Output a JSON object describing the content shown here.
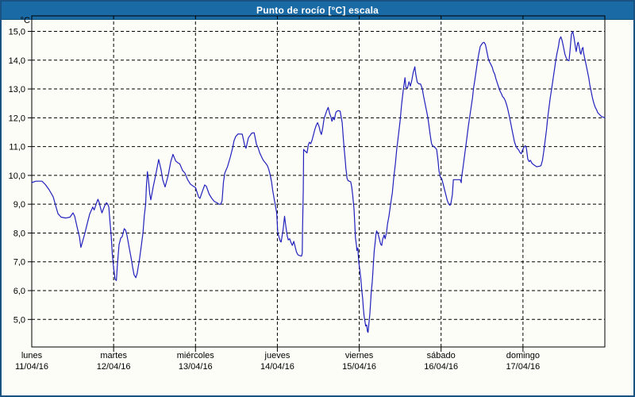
{
  "window": {
    "title": "Punto de rocío [°C] escala",
    "titlebar_color": "#1a6aa5",
    "border_color": "#1a5382",
    "background_color": "#fdfdf8"
  },
  "chart_data": {
    "type": "line",
    "title": "Punto de rocío [°C] escala",
    "series_name": "Punto de rocío",
    "unit_label": "°C",
    "line_color": "#2121bd",
    "grid_color": "#000000",
    "grid_style": "dashed",
    "xlabel": "",
    "ylabel": "°C",
    "ylim": [
      4.0,
      15.55
    ],
    "yticks": [
      {
        "value": 5,
        "label": "5,0"
      },
      {
        "value": 6,
        "label": "6,0"
      },
      {
        "value": 7,
        "label": "7,0"
      },
      {
        "value": 8,
        "label": "8,0"
      },
      {
        "value": 9,
        "label": "9,0"
      },
      {
        "value": 10,
        "label": "10,0"
      },
      {
        "value": 11,
        "label": "11,0"
      },
      {
        "value": 12,
        "label": "12,0"
      },
      {
        "value": 13,
        "label": "13,0"
      },
      {
        "value": 14,
        "label": "14,0"
      },
      {
        "value": 15,
        "label": "15,0"
      }
    ],
    "x_days": [
      {
        "name": "lunes",
        "date": "11/04/16"
      },
      {
        "name": "martes",
        "date": "12/04/16"
      },
      {
        "name": "miércoles",
        "date": "13/04/16"
      },
      {
        "name": "jueves",
        "date": "14/04/16"
      },
      {
        "name": "viernes",
        "date": "15/04/16"
      },
      {
        "name": "sábado",
        "date": "16/04/16"
      },
      {
        "name": "domingo",
        "date": "17/04/16"
      }
    ],
    "x_unit": "hours_from_monday_00",
    "xlim_hours": [
      0,
      168
    ],
    "points": [
      [
        0,
        9.75
      ],
      [
        1.2,
        9.8
      ],
      [
        3,
        9.8
      ],
      [
        4,
        9.68
      ],
      [
        5.1,
        9.5
      ],
      [
        6.3,
        9.25
      ],
      [
        7,
        8.95
      ],
      [
        7.7,
        8.67
      ],
      [
        8.6,
        8.55
      ],
      [
        10,
        8.52
      ],
      [
        11.2,
        8.55
      ],
      [
        12.1,
        8.7
      ],
      [
        12.6,
        8.58
      ],
      [
        13.3,
        8.2
      ],
      [
        14,
        7.85
      ],
      [
        14.4,
        7.5
      ],
      [
        14.9,
        7.7
      ],
      [
        15.6,
        8.0
      ],
      [
        16.3,
        8.35
      ],
      [
        17,
        8.67
      ],
      [
        17.9,
        8.9
      ],
      [
        18.3,
        8.8
      ],
      [
        18.6,
        8.9
      ],
      [
        19.1,
        9.08
      ],
      [
        19.4,
        9.17
      ],
      [
        19.8,
        9.05
      ],
      [
        20.2,
        8.85
      ],
      [
        20.6,
        8.7
      ],
      [
        20.9,
        8.8
      ],
      [
        21.4,
        8.95
      ],
      [
        21.9,
        9.05
      ],
      [
        22.3,
        9.0
      ],
      [
        22.6,
        8.9
      ],
      [
        22.9,
        8.45
      ],
      [
        23.3,
        7.9
      ],
      [
        23.6,
        7.3
      ],
      [
        24,
        6.8
      ],
      [
        24.4,
        6.4
      ],
      [
        24.8,
        6.35
      ],
      [
        25.1,
        6.9
      ],
      [
        25.6,
        7.6
      ],
      [
        26.1,
        7.83
      ],
      [
        26.5,
        7.87
      ],
      [
        27.1,
        8.15
      ],
      [
        27.5,
        8.1
      ],
      [
        27.9,
        7.93
      ],
      [
        28.6,
        7.47
      ],
      [
        29.1,
        7.15
      ],
      [
        29.6,
        6.8
      ],
      [
        30,
        6.55
      ],
      [
        30.5,
        6.45
      ],
      [
        30.9,
        6.6
      ],
      [
        31.6,
        7.1
      ],
      [
        32.1,
        7.55
      ],
      [
        32.6,
        8.0
      ],
      [
        33,
        8.6
      ],
      [
        33.4,
        9.0
      ],
      [
        33.6,
        9.6
      ],
      [
        33.9,
        10.13
      ],
      [
        34.2,
        9.85
      ],
      [
        34.6,
        9.35
      ],
      [
        34.9,
        9.15
      ],
      [
        35.6,
        9.6
      ],
      [
        36.4,
        10.05
      ],
      [
        37.2,
        10.55
      ],
      [
        37.9,
        10.2
      ],
      [
        38.4,
        9.85
      ],
      [
        39.1,
        9.6
      ],
      [
        40,
        10.0
      ],
      [
        40.7,
        10.45
      ],
      [
        41.4,
        10.73
      ],
      [
        42.2,
        10.5
      ],
      [
        42.7,
        10.45
      ],
      [
        43.4,
        10.4
      ],
      [
        44.2,
        10.17
      ],
      [
        44.9,
        10.08
      ],
      [
        45.7,
        9.85
      ],
      [
        46.5,
        9.7
      ],
      [
        47.4,
        9.62
      ],
      [
        48,
        9.58
      ],
      [
        48.9,
        9.25
      ],
      [
        49.3,
        9.2
      ],
      [
        50,
        9.44
      ],
      [
        50.7,
        9.67
      ],
      [
        51.2,
        9.62
      ],
      [
        52,
        9.35
      ],
      [
        52.8,
        9.2
      ],
      [
        53.5,
        9.1
      ],
      [
        54.3,
        9.05
      ],
      [
        54.9,
        9.0
      ],
      [
        55.4,
        9.0
      ],
      [
        55.8,
        9.12
      ],
      [
        56.2,
        9.76
      ],
      [
        56.6,
        10.08
      ],
      [
        57.4,
        10.31
      ],
      [
        58.2,
        10.63
      ],
      [
        58.9,
        10.96
      ],
      [
        59.3,
        11.2
      ],
      [
        59.8,
        11.35
      ],
      [
        60.5,
        11.44
      ],
      [
        61.7,
        11.43
      ],
      [
        62.4,
        11.05
      ],
      [
        62.8,
        10.94
      ],
      [
        63.5,
        11.3
      ],
      [
        64.5,
        11.47
      ],
      [
        65.2,
        11.48
      ],
      [
        65.9,
        11.07
      ],
      [
        66.3,
        10.98
      ],
      [
        66.8,
        10.79
      ],
      [
        67.5,
        10.61
      ],
      [
        67.9,
        10.52
      ],
      [
        68.6,
        10.42
      ],
      [
        69.1,
        10.33
      ],
      [
        69.5,
        10.2
      ],
      [
        69.8,
        10.06
      ],
      [
        70.3,
        9.78
      ],
      [
        70.6,
        9.51
      ],
      [
        71,
        9.23
      ],
      [
        71.4,
        8.96
      ],
      [
        71.8,
        8.7
      ],
      [
        72.1,
        8.03
      ],
      [
        72.5,
        7.85
      ],
      [
        72.9,
        7.71
      ],
      [
        73.1,
        7.69
      ],
      [
        73.7,
        8.12
      ],
      [
        74.1,
        8.58
      ],
      [
        74.5,
        8.21
      ],
      [
        74.9,
        7.9
      ],
      [
        75.2,
        7.76
      ],
      [
        75.6,
        7.8
      ],
      [
        76,
        7.67
      ],
      [
        76.4,
        7.57
      ],
      [
        76.8,
        7.71
      ],
      [
        77.2,
        7.53
      ],
      [
        77.6,
        7.34
      ],
      [
        78,
        7.25
      ],
      [
        78.4,
        7.22
      ],
      [
        79.1,
        7.2
      ],
      [
        79.3,
        7.3
      ],
      [
        79.4,
        8.2
      ],
      [
        79.6,
        9.5
      ],
      [
        79.7,
        10.9
      ],
      [
        80.1,
        10.85
      ],
      [
        80.7,
        10.78
      ],
      [
        81.1,
        11.06
      ],
      [
        81.4,
        11.15
      ],
      [
        81.8,
        11.1
      ],
      [
        82.2,
        11.24
      ],
      [
        82.6,
        11.42
      ],
      [
        83,
        11.6
      ],
      [
        83.4,
        11.74
      ],
      [
        83.8,
        11.83
      ],
      [
        84.2,
        11.7
      ],
      [
        84.6,
        11.51
      ],
      [
        84.9,
        11.42
      ],
      [
        85.3,
        11.65
      ],
      [
        85.7,
        11.97
      ],
      [
        86.1,
        12.11
      ],
      [
        86.5,
        12.25
      ],
      [
        86.9,
        12.36
      ],
      [
        87.3,
        12.16
      ],
      [
        87.7,
        12.02
      ],
      [
        88,
        11.88
      ],
      [
        88.4,
        12.02
      ],
      [
        88.7,
        11.93
      ],
      [
        89,
        12.11
      ],
      [
        89.2,
        12.2
      ],
      [
        89.8,
        12.25
      ],
      [
        90.4,
        12.23
      ],
      [
        90.8,
        11.97
      ],
      [
        91,
        11.83
      ],
      [
        91.3,
        11.33
      ],
      [
        91.5,
        11.06
      ],
      [
        91.7,
        10.78
      ],
      [
        91.9,
        10.51
      ],
      [
        92.1,
        10.23
      ],
      [
        92.3,
        10.05
      ],
      [
        92.4,
        9.91
      ],
      [
        92.7,
        9.82
      ],
      [
        93.1,
        9.8
      ],
      [
        93.5,
        9.78
      ],
      [
        93.8,
        9.6
      ],
      [
        94.1,
        9.3
      ],
      [
        94.5,
        8.8
      ],
      [
        94.9,
        7.84
      ],
      [
        95.2,
        7.57
      ],
      [
        95.3,
        7.39
      ],
      [
        95.6,
        7.48
      ],
      [
        95.7,
        7.25
      ],
      [
        95.9,
        6.97
      ],
      [
        96.2,
        6.7
      ],
      [
        96.5,
        6.38
      ],
      [
        96.7,
        6.06
      ],
      [
        97,
        5.73
      ],
      [
        97.2,
        5.41
      ],
      [
        97.4,
        5.14
      ],
      [
        97.7,
        4.91
      ],
      [
        97.9,
        4.77
      ],
      [
        98.2,
        4.81
      ],
      [
        98.4,
        4.59
      ],
      [
        98.6,
        4.55
      ],
      [
        98.8,
        4.81
      ],
      [
        99.1,
        5.18
      ],
      [
        99.3,
        5.55
      ],
      [
        99.5,
        5.92
      ],
      [
        99.8,
        6.28
      ],
      [
        100,
        6.65
      ],
      [
        100.2,
        7.02
      ],
      [
        100.4,
        7.39
      ],
      [
        100.7,
        7.71
      ],
      [
        100.9,
        7.94
      ],
      [
        101.1,
        8.07
      ],
      [
        101.5,
        7.98
      ],
      [
        101.9,
        7.8
      ],
      [
        102.3,
        7.61
      ],
      [
        102.6,
        7.57
      ],
      [
        102.9,
        7.8
      ],
      [
        103.2,
        7.89
      ],
      [
        103.3,
        7.94
      ],
      [
        103.6,
        7.8
      ],
      [
        104,
        8.03
      ],
      [
        104.3,
        8.31
      ],
      [
        104.7,
        8.58
      ],
      [
        105.2,
        9.0
      ],
      [
        105.7,
        9.4
      ],
      [
        106.1,
        9.9
      ],
      [
        106.6,
        10.4
      ],
      [
        107,
        10.9
      ],
      [
        107.5,
        11.4
      ],
      [
        108,
        11.9
      ],
      [
        108.4,
        12.45
      ],
      [
        108.9,
        12.95
      ],
      [
        109.4,
        13.39
      ],
      [
        109.7,
        13.06
      ],
      [
        110.1,
        13.02
      ],
      [
        110.6,
        13.25
      ],
      [
        111,
        13.1
      ],
      [
        111.4,
        13.3
      ],
      [
        111.8,
        13.56
      ],
      [
        112.3,
        13.77
      ],
      [
        112.6,
        13.5
      ],
      [
        113,
        13.24
      ],
      [
        113.4,
        13.18
      ],
      [
        114,
        13.17
      ],
      [
        114.5,
        13.0
      ],
      [
        114.8,
        12.78
      ],
      [
        115.2,
        12.55
      ],
      [
        115.6,
        12.32
      ],
      [
        116,
        12.09
      ],
      [
        116.3,
        11.86
      ],
      [
        116.8,
        11.4
      ],
      [
        117.2,
        11.1
      ],
      [
        117.5,
        11.03
      ],
      [
        118.2,
        10.97
      ],
      [
        118.7,
        10.9
      ],
      [
        119.1,
        10.52
      ],
      [
        119.4,
        10.15
      ],
      [
        119.8,
        9.93
      ],
      [
        120.2,
        9.88
      ],
      [
        120.6,
        9.7
      ],
      [
        121,
        9.51
      ],
      [
        121.4,
        9.33
      ],
      [
        121.8,
        9.14
      ],
      [
        122.2,
        9.01
      ],
      [
        122.6,
        8.96
      ],
      [
        122.9,
        9.05
      ],
      [
        123.3,
        9.33
      ],
      [
        123.6,
        9.85
      ],
      [
        124.5,
        9.85
      ],
      [
        125.6,
        9.85
      ],
      [
        125.9,
        9.75
      ],
      [
        126,
        9.93
      ],
      [
        126.4,
        10.25
      ],
      [
        126.8,
        10.61
      ],
      [
        127.2,
        10.98
      ],
      [
        127.6,
        11.35
      ],
      [
        128,
        11.72
      ],
      [
        128.4,
        12.04
      ],
      [
        128.8,
        12.36
      ],
      [
        129.2,
        12.69
      ],
      [
        129.5,
        13.01
      ],
      [
        129.9,
        13.33
      ],
      [
        130.3,
        13.65
      ],
      [
        130.7,
        13.98
      ],
      [
        131.1,
        14.25
      ],
      [
        131.5,
        14.48
      ],
      [
        132.2,
        14.6
      ],
      [
        132.6,
        14.62
      ],
      [
        133,
        14.54
      ],
      [
        133.4,
        14.31
      ],
      [
        133.8,
        14.08
      ],
      [
        134.2,
        13.94
      ],
      [
        134.6,
        13.85
      ],
      [
        135,
        13.75
      ],
      [
        135.3,
        13.62
      ],
      [
        135.7,
        13.52
      ],
      [
        136.1,
        13.34
      ],
      [
        136.5,
        13.2
      ],
      [
        136.9,
        13.06
      ],
      [
        137.3,
        12.92
      ],
      [
        137.7,
        12.83
      ],
      [
        138,
        12.74
      ],
      [
        138.4,
        12.69
      ],
      [
        138.8,
        12.6
      ],
      [
        139.2,
        12.46
      ],
      [
        139.6,
        12.28
      ],
      [
        140,
        12.05
      ],
      [
        140.4,
        11.82
      ],
      [
        140.8,
        11.58
      ],
      [
        141.2,
        11.35
      ],
      [
        141.5,
        11.17
      ],
      [
        141.9,
        11.03
      ],
      [
        142.3,
        10.94
      ],
      [
        142.7,
        10.89
      ],
      [
        143.1,
        10.8
      ],
      [
        143.5,
        10.75
      ],
      [
        143.9,
        10.89
      ],
      [
        144.3,
        10.98
      ],
      [
        144.7,
        11.03
      ],
      [
        145,
        10.94
      ],
      [
        145.4,
        10.57
      ],
      [
        145.8,
        10.48
      ],
      [
        146.2,
        10.52
      ],
      [
        146.6,
        10.43
      ],
      [
        147,
        10.38
      ],
      [
        147.4,
        10.35
      ],
      [
        148,
        10.3
      ],
      [
        148.9,
        10.32
      ],
      [
        149.3,
        10.34
      ],
      [
        149.7,
        10.52
      ],
      [
        150.1,
        10.84
      ],
      [
        150.5,
        11.21
      ],
      [
        150.9,
        11.58
      ],
      [
        151.2,
        11.95
      ],
      [
        151.6,
        12.32
      ],
      [
        152,
        12.69
      ],
      [
        152.4,
        13.01
      ],
      [
        152.8,
        13.33
      ],
      [
        153.2,
        13.65
      ],
      [
        153.6,
        13.98
      ],
      [
        154,
        14.25
      ],
      [
        154.4,
        14.48
      ],
      [
        154.7,
        14.71
      ],
      [
        155.1,
        14.81
      ],
      [
        155.5,
        14.67
      ],
      [
        155.9,
        14.44
      ],
      [
        156.3,
        14.21
      ],
      [
        156.7,
        14.07
      ],
      [
        157.1,
        14.0
      ],
      [
        157.5,
        13.98
      ],
      [
        157.8,
        14.35
      ],
      [
        158.2,
        14.9
      ],
      [
        158.6,
        15.0
      ],
      [
        159,
        14.76
      ],
      [
        159.4,
        14.44
      ],
      [
        159.6,
        14.3
      ],
      [
        160,
        14.58
      ],
      [
        160.2,
        14.62
      ],
      [
        160.6,
        14.39
      ],
      [
        160.8,
        14.25
      ],
      [
        161,
        14.21
      ],
      [
        161.3,
        14.39
      ],
      [
        161.6,
        14.44
      ],
      [
        161.7,
        14.3
      ],
      [
        162.1,
        14.07
      ],
      [
        162.5,
        13.84
      ],
      [
        162.9,
        13.61
      ],
      [
        163.3,
        13.38
      ],
      [
        163.6,
        13.14
      ],
      [
        164,
        12.91
      ],
      [
        164.4,
        12.68
      ],
      [
        164.8,
        12.5
      ],
      [
        165.2,
        12.36
      ],
      [
        165.6,
        12.27
      ],
      [
        165.9,
        12.18
      ],
      [
        166.3,
        12.13
      ],
      [
        166.7,
        12.08
      ],
      [
        167.1,
        12.04
      ],
      [
        167.5,
        12.02
      ],
      [
        168,
        12.0
      ]
    ]
  }
}
